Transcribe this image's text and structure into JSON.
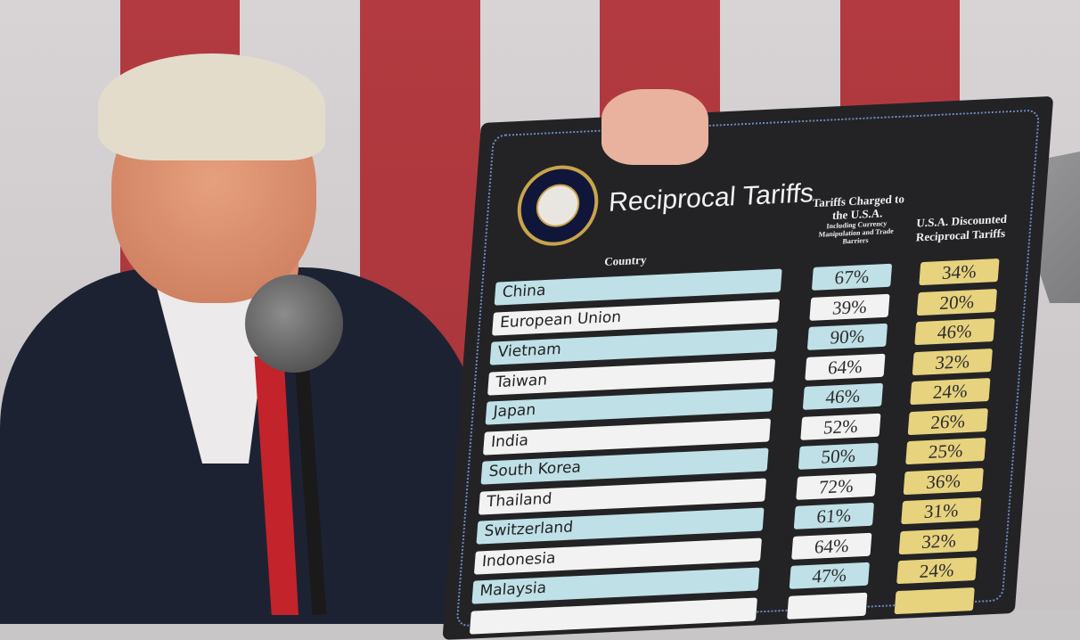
{
  "board": {
    "title": "Reciprocal Tariffs",
    "seal_text": "Seal of the President of the United States",
    "headers": {
      "country": "Country",
      "charged": "Tariffs Charged to the U.S.A.",
      "charged_note": "Including Currency Manipulation and Trade Barriers",
      "discounted": "U.S.A. Discounted Reciprocal Tariffs"
    },
    "rows": [
      {
        "country": "China",
        "charged": "67%",
        "discounted": "34%"
      },
      {
        "country": "European Union",
        "charged": "39%",
        "discounted": "20%"
      },
      {
        "country": "Vietnam",
        "charged": "90%",
        "discounted": "46%"
      },
      {
        "country": "Taiwan",
        "charged": "64%",
        "discounted": "32%"
      },
      {
        "country": "Japan",
        "charged": "46%",
        "discounted": "24%"
      },
      {
        "country": "India",
        "charged": "52%",
        "discounted": "26%"
      },
      {
        "country": "South Korea",
        "charged": "50%",
        "discounted": "25%"
      },
      {
        "country": "Thailand",
        "charged": "72%",
        "discounted": "36%"
      },
      {
        "country": "Switzerland",
        "charged": "61%",
        "discounted": "31%"
      },
      {
        "country": "Indonesia",
        "charged": "64%",
        "discounted": "32%"
      },
      {
        "country": "Malaysia",
        "charged": "47%",
        "discounted": "24%"
      }
    ],
    "colors": {
      "board": "#232325",
      "country_blue": "#bfe0e6",
      "country_white": "#f2f2f2",
      "discount_gold": "#e7d27e"
    }
  }
}
